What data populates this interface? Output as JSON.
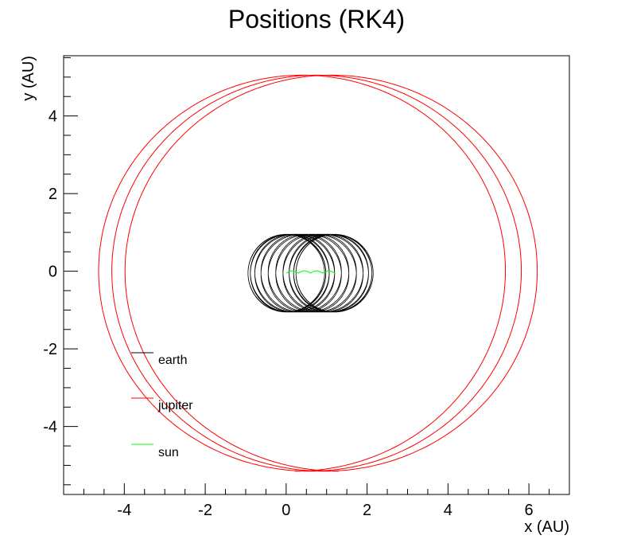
{
  "chart_data": {
    "type": "line",
    "title": "Positions (RK4)",
    "xlabel": "x (AU)",
    "ylabel": "y (AU)",
    "xlim": [
      -5.5,
      7.0
    ],
    "ylim": [
      -5.75,
      5.55
    ],
    "x_ticks": [
      -4,
      -2,
      0,
      2,
      4,
      6
    ],
    "x_tick_labels": [
      "-4",
      "-2",
      "0",
      "2",
      "4",
      "6"
    ],
    "y_ticks": [
      -4,
      -2,
      0,
      2,
      4
    ],
    "y_tick_labels": [
      "-4",
      "-2",
      "0",
      "2",
      "4"
    ],
    "grid": false,
    "legend_position": "lower-left",
    "series": [
      {
        "name": "earth",
        "color": "#000000",
        "shape": "earth orbit: circle radius ~0.95 AU around drifting sun",
        "orbit_radius": 0.95,
        "revolutions": 20
      },
      {
        "name": "jupiter",
        "color": "#ff0000",
        "shape": "jupiter orbit: ~3 loops radius ~5.1 AU, ending at (6.5, -0.1)",
        "orbit_radius": 5.1,
        "end_point": [
          6.5,
          -0.1
        ]
      },
      {
        "name": "sun",
        "color": "#00ff00",
        "shape": "sun: wiggle from (0, -0.05) to (1.2, -0.05)",
        "x_range": [
          0.0,
          1.2
        ],
        "y_center": -0.05
      }
    ]
  }
}
